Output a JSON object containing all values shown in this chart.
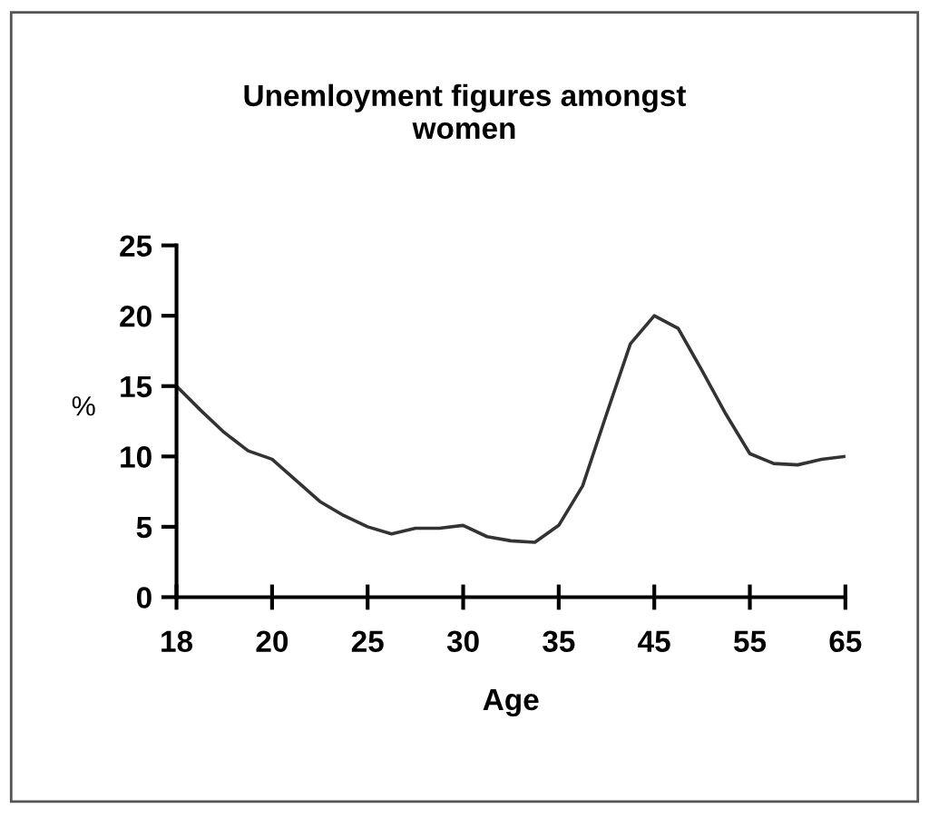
{
  "chart_data": {
    "type": "line",
    "title": "Unemloyment figures amongst\nwomen",
    "xlabel": "Age",
    "ylabel": "%",
    "categories": [
      "18",
      null,
      null,
      null,
      "20",
      null,
      null,
      null,
      "25",
      null,
      null,
      null,
      "30",
      null,
      null,
      null,
      "35",
      null,
      null,
      null,
      "45",
      null,
      null,
      null,
      "55",
      null,
      null,
      null,
      "65"
    ],
    "values": [
      15,
      13.3,
      11.7,
      10.4,
      9.8,
      8.3,
      6.8,
      5.8,
      5.0,
      4.5,
      4.9,
      4.9,
      5.1,
      4.3,
      4.0,
      3.9,
      5.1,
      7.9,
      13.0,
      18.0,
      20.0,
      19.1,
      16.1,
      13.0,
      10.2,
      9.5,
      9.4,
      9.8,
      10.0
    ],
    "color": "#333333",
    "ylim": [
      0,
      25
    ],
    "yticks": [
      0,
      5,
      10,
      15,
      20,
      25
    ],
    "grid": false,
    "legend": false,
    "marker": "none",
    "line_style": "solid"
  }
}
